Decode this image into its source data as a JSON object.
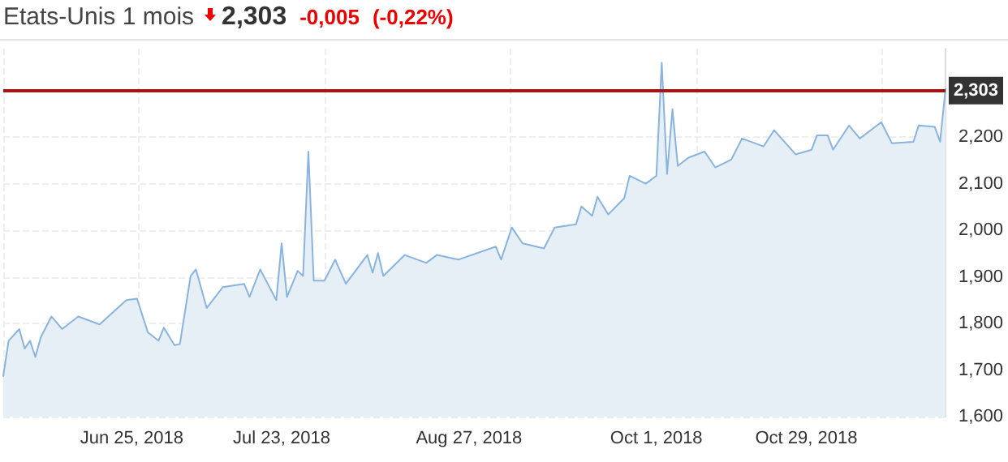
{
  "chart_data": {
    "type": "area",
    "title": "Etats-Unis 1 mois",
    "annotations": [
      "2,303",
      "-0,005",
      "(-0,22%)"
    ],
    "x": [
      "2018-06-01",
      "2018-06-02",
      "2018-06-04",
      "2018-06-05",
      "2018-06-06",
      "2018-06-07",
      "2018-06-08",
      "2018-06-10",
      "2018-06-12",
      "2018-06-15",
      "2018-06-19",
      "2018-06-24",
      "2018-06-26",
      "2018-06-28",
      "2018-06-30",
      "2018-07-01",
      "2018-07-03",
      "2018-07-04",
      "2018-07-06",
      "2018-07-07",
      "2018-07-09",
      "2018-07-12",
      "2018-07-16",
      "2018-07-17",
      "2018-07-19",
      "2018-07-22",
      "2018-07-23",
      "2018-07-24",
      "2018-07-26",
      "2018-07-27",
      "2018-07-28",
      "2018-07-29",
      "2018-07-31",
      "2018-08-02",
      "2018-08-04",
      "2018-08-08",
      "2018-08-09",
      "2018-08-10",
      "2018-08-11",
      "2018-08-15",
      "2018-08-19",
      "2018-08-21",
      "2018-08-25",
      "2018-09-01",
      "2018-09-02",
      "2018-09-04",
      "2018-09-06",
      "2018-09-10",
      "2018-09-12",
      "2018-09-16",
      "2018-09-17",
      "2018-09-19",
      "2018-09-20",
      "2018-09-22",
      "2018-09-25",
      "2018-09-26",
      "2018-09-29",
      "2018-10-01",
      "2018-10-02",
      "2018-10-03",
      "2018-10-04",
      "2018-10-05",
      "2018-10-07",
      "2018-10-10",
      "2018-10-12",
      "2018-10-15",
      "2018-10-17",
      "2018-10-21",
      "2018-10-23",
      "2018-10-27",
      "2018-10-30",
      "2018-10-31",
      "2018-11-02",
      "2018-11-03",
      "2018-11-06",
      "2018-11-08",
      "2018-11-12",
      "2018-11-14",
      "2018-11-18",
      "2018-11-19",
      "2018-11-22",
      "2018-11-23",
      "2018-11-24"
    ],
    "series": [
      {
        "color": "#8ab4e0",
        "values": [
          1.687,
          1.763,
          1.788,
          1.746,
          1.763,
          1.728,
          1.77,
          1.815,
          1.788,
          1.815,
          1.798,
          1.85,
          1.853,
          1.781,
          1.763,
          1.791,
          1.753,
          1.756,
          1.902,
          1.916,
          1.833,
          1.878,
          1.885,
          1.857,
          1.916,
          1.85,
          1.972,
          1.857,
          1.913,
          1.902,
          2.169,
          1.892,
          1.892,
          1.937,
          1.885,
          1.947,
          1.909,
          1.951,
          1.902,
          1.947,
          1.93,
          1.947,
          1.937,
          1.965,
          1.937,
          2.006,
          1.972,
          1.961,
          2.006,
          2.013,
          2.051,
          2.031,
          2.072,
          2.034,
          2.069,
          2.117,
          2.1,
          2.117,
          2.36,
          2.121,
          2.26,
          2.138,
          2.156,
          2.169,
          2.135,
          2.152,
          2.197,
          2.18,
          2.215,
          2.163,
          2.173,
          2.204,
          2.204,
          2.173,
          2.225,
          2.197,
          2.232,
          2.187,
          2.19,
          2.225,
          2.222,
          2.19,
          2.303
        ]
      }
    ],
    "xlim": [
      "2018-06-01",
      "2018-11-24"
    ],
    "xticks": [
      {
        "value": "2018-06-25",
        "label": "Jun 25, 2018"
      },
      {
        "value": "2018-07-23",
        "label": "Jul 23, 2018"
      },
      {
        "value": "2018-08-27",
        "label": "Aug 27, 2018"
      },
      {
        "value": "2018-10-01",
        "label": "Oct 1, 2018"
      },
      {
        "value": "2018-10-29",
        "label": "Oct 29, 2018"
      }
    ],
    "ylim": [
      1.6,
      2.39
    ],
    "yticks": [
      {
        "value": 1.6,
        "label": "1,600"
      },
      {
        "value": 1.7,
        "label": "1,700"
      },
      {
        "value": 1.8,
        "label": "1,800"
      },
      {
        "value": 1.9,
        "label": "1,900"
      },
      {
        "value": 2.0,
        "label": "2,000"
      },
      {
        "value": 2.1,
        "label": "2,100"
      },
      {
        "value": 2.2,
        "label": "2,200"
      }
    ],
    "ref_lines": [
      {
        "axis": "y",
        "value": 2.303,
        "label": "2,303",
        "color": "#a31515"
      }
    ],
    "grid": true,
    "marker": "none",
    "line_style": "solid"
  }
}
